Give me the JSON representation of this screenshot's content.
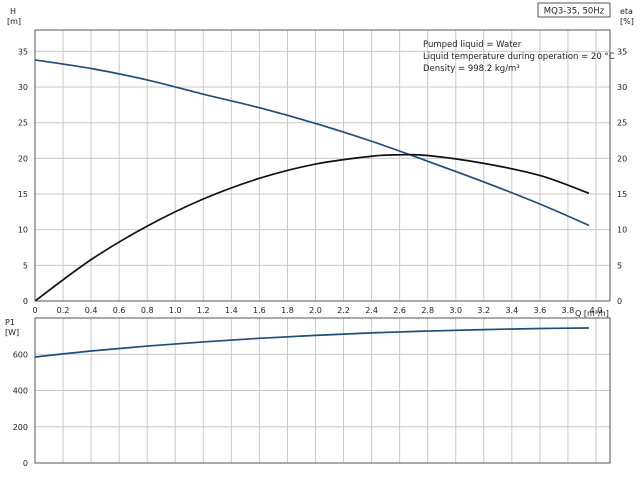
{
  "chart_data": [
    {
      "type": "line",
      "title": "MQ3-35, 50Hz",
      "annotations": [
        "Pumped liquid = Water",
        "Liquid temperature during operation = 20 °C",
        "Density = 998.2 kg/m³"
      ],
      "xlabel": "Q [m³/h]",
      "ylabel_left": [
        "H",
        "[m]"
      ],
      "ylabel_right": [
        "eta",
        "[%]"
      ],
      "xlim": [
        0,
        4.1
      ],
      "ylim": [
        0,
        38
      ],
      "grid": true,
      "x_ticks": [
        "0",
        "0.2",
        "0.4",
        "0.6",
        "0.8",
        "1.0",
        "1.2",
        "1.4",
        "1.6",
        "1.8",
        "2.0",
        "2.2",
        "2.4",
        "2.6",
        "2.8",
        "3.0",
        "3.2",
        "3.4",
        "3.6",
        "3.8",
        "4.0"
      ],
      "x_tick_values": [
        0,
        0.2,
        0.4,
        0.6,
        0.8,
        1.0,
        1.2,
        1.4,
        1.6,
        1.8,
        2.0,
        2.2,
        2.4,
        2.6,
        2.8,
        3.0,
        3.2,
        3.4,
        3.6,
        3.8,
        4.0
      ],
      "y_ticks": [
        "0",
        "5",
        "10",
        "15",
        "20",
        "25",
        "30",
        "35"
      ],
      "y_tick_values": [
        0,
        5,
        10,
        15,
        20,
        25,
        30,
        35
      ],
      "series": [
        {
          "color": "#1f4e79",
          "x": [
            0,
            0.4,
            0.8,
            1.2,
            1.6,
            2.0,
            2.4,
            2.8,
            3.2,
            3.6,
            3.95
          ],
          "y": [
            33.8,
            32.6,
            31.0,
            29.0,
            27.1,
            24.9,
            22.4,
            19.6,
            16.7,
            13.6,
            10.6
          ]
        },
        {
          "color": "#111111",
          "x": [
            0,
            0.4,
            0.8,
            1.2,
            1.6,
            2.0,
            2.4,
            2.6,
            2.8,
            3.2,
            3.6,
            3.95
          ],
          "y": [
            0,
            5.8,
            10.5,
            14.3,
            17.2,
            19.2,
            20.3,
            20.5,
            20.4,
            19.3,
            17.6,
            15.1
          ]
        }
      ]
    },
    {
      "type": "line",
      "ylabel": [
        "P1",
        "[W]"
      ],
      "xlim": [
        0,
        4.1
      ],
      "ylim": [
        0,
        800
      ],
      "grid": true,
      "y_ticks": [
        "0",
        "200",
        "400",
        "600"
      ],
      "y_tick_values": [
        0,
        200,
        400,
        600
      ],
      "series": [
        {
          "color": "#1f4e79",
          "x": [
            0,
            0.4,
            0.8,
            1.2,
            1.6,
            2.0,
            2.4,
            2.8,
            3.2,
            3.6,
            3.95
          ],
          "y": [
            585,
            618,
            645,
            668,
            688,
            704,
            718,
            728,
            736,
            742,
            745
          ]
        }
      ]
    }
  ]
}
